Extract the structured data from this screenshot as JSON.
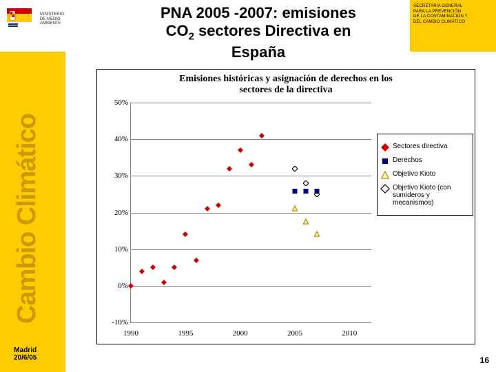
{
  "logo": {
    "ministry_line1": "MINISTERIO",
    "ministry_line2": "DE MEDIO AMBIENTE"
  },
  "header": {
    "line1": "PNA 2005 -2007: emisiones",
    "co2_pre": "CO",
    "co2_sub": "2",
    "line2_rest": " sectores Directiva en",
    "line3": "España"
  },
  "rightbox": {
    "l1": "SECRETARÍA GENERAL",
    "l2": "PARA LA PREVENCIÓN",
    "l3": "DE LA CONTAMINACIÓN Y",
    "l4": "DEL CAMBIO CLIMÁTICO"
  },
  "sidebar": "Cambio Climático",
  "footer": {
    "l1": "Madrid",
    "l2": "20/6/05"
  },
  "pagenum": "16",
  "chart": {
    "title_l1": "Emisiones históricas y asignación de derechos en los",
    "title_l2": "sectores de la directiva",
    "ylim": [
      -10,
      50
    ],
    "ytick_step": 10,
    "yaxis_labels": [
      "-10%",
      "0%",
      "10%",
      "20%",
      "30%",
      "40%",
      "50%"
    ],
    "xlim": [
      1990,
      2012
    ],
    "xaxis_ticks": [
      1990,
      1995,
      2000,
      2005,
      2010
    ],
    "xaxis_labels": [
      "1990",
      "1995",
      "2000",
      "2005",
      "2010"
    ],
    "grid_color": "#888888",
    "series": {
      "sectores": {
        "label": "Sectores directiva",
        "type": "scatter",
        "marker": "diamond-filled",
        "color": "#cc0000",
        "size": 8,
        "points": [
          [
            1990,
            0
          ],
          [
            1991,
            4
          ],
          [
            1992,
            5
          ],
          [
            1993,
            1
          ],
          [
            1994,
            5
          ],
          [
            1995,
            14
          ],
          [
            1996,
            7
          ],
          [
            1997,
            21
          ],
          [
            1998,
            22
          ],
          [
            1999,
            32
          ],
          [
            2000,
            37
          ],
          [
            2001,
            33
          ],
          [
            2002,
            41
          ]
        ]
      },
      "derechos": {
        "label": "Derechos",
        "type": "scatter",
        "marker": "square-filled",
        "color": "#000080",
        "size": 7,
        "points": [
          [
            2005,
            26
          ],
          [
            2006,
            26
          ],
          [
            2007,
            26
          ]
        ]
      },
      "kioto": {
        "label": "Objetivo Kioto",
        "type": "scatter",
        "marker": "triangle-open",
        "color": "#cc9900",
        "size": 9,
        "points": [
          [
            2005,
            21
          ],
          [
            2006,
            17.5
          ],
          [
            2007,
            14
          ]
        ]
      },
      "kioto_sum": {
        "label": "Objetivo Kioto (con sumideros y mecanismos)",
        "type": "scatter",
        "marker": "diamond-open",
        "color": "#000000",
        "size": 8,
        "points": [
          [
            2005,
            32
          ],
          [
            2006,
            28
          ],
          [
            2007,
            25
          ]
        ]
      }
    }
  }
}
